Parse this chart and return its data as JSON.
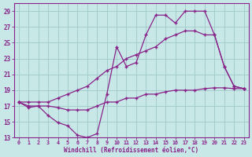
{
  "xlabel": "Windchill (Refroidissement éolien,°C)",
  "background_color": "#c8e8e8",
  "grid_color": "#a0c8c8",
  "line_color": "#882288",
  "xlim": [
    0,
    23
  ],
  "ylim": [
    13,
    30
  ],
  "xticks": [
    0,
    1,
    2,
    3,
    4,
    5,
    6,
    7,
    8,
    9,
    10,
    11,
    12,
    13,
    14,
    15,
    16,
    17,
    18,
    19,
    20,
    21,
    22,
    23
  ],
  "yticks": [
    13,
    15,
    17,
    19,
    21,
    23,
    25,
    27,
    29
  ],
  "lines": [
    {
      "x": [
        0,
        1,
        2,
        3,
        4,
        5,
        6,
        7,
        8,
        9,
        10,
        11,
        12,
        13,
        14,
        15,
        16,
        17,
        18,
        19,
        20,
        21,
        22,
        23
      ],
      "y": [
        17.5,
        16.8,
        17.0,
        15.8,
        14.9,
        14.5,
        13.3,
        13.0,
        13.5,
        18.5,
        24.5,
        22.0,
        22.5,
        26.0,
        28.5,
        28.5,
        27.5,
        29.0,
        29.0,
        29.0,
        26.0,
        22.0,
        19.5,
        19.2
      ]
    },
    {
      "x": [
        0,
        1,
        2,
        3,
        4,
        5,
        6,
        7,
        8,
        9,
        10,
        11,
        12,
        13,
        14,
        15,
        16,
        17,
        18,
        19,
        20,
        21,
        22,
        23
      ],
      "y": [
        17.5,
        17.5,
        17.5,
        17.5,
        18.0,
        18.5,
        19.0,
        19.5,
        20.5,
        21.5,
        22.0,
        23.0,
        23.5,
        24.0,
        24.5,
        25.5,
        26.0,
        26.5,
        26.5,
        26.0,
        26.0,
        22.0,
        19.5,
        19.2
      ]
    },
    {
      "x": [
        0,
        1,
        2,
        3,
        4,
        5,
        6,
        7,
        8,
        9,
        10,
        11,
        12,
        13,
        14,
        15,
        16,
        17,
        18,
        19,
        20,
        21,
        22,
        23
      ],
      "y": [
        17.5,
        17.0,
        17.0,
        17.0,
        16.8,
        16.5,
        16.5,
        16.5,
        17.0,
        17.5,
        17.5,
        18.0,
        18.0,
        18.5,
        18.5,
        18.8,
        19.0,
        19.0,
        19.0,
        19.2,
        19.3,
        19.3,
        19.2,
        19.2
      ]
    }
  ]
}
